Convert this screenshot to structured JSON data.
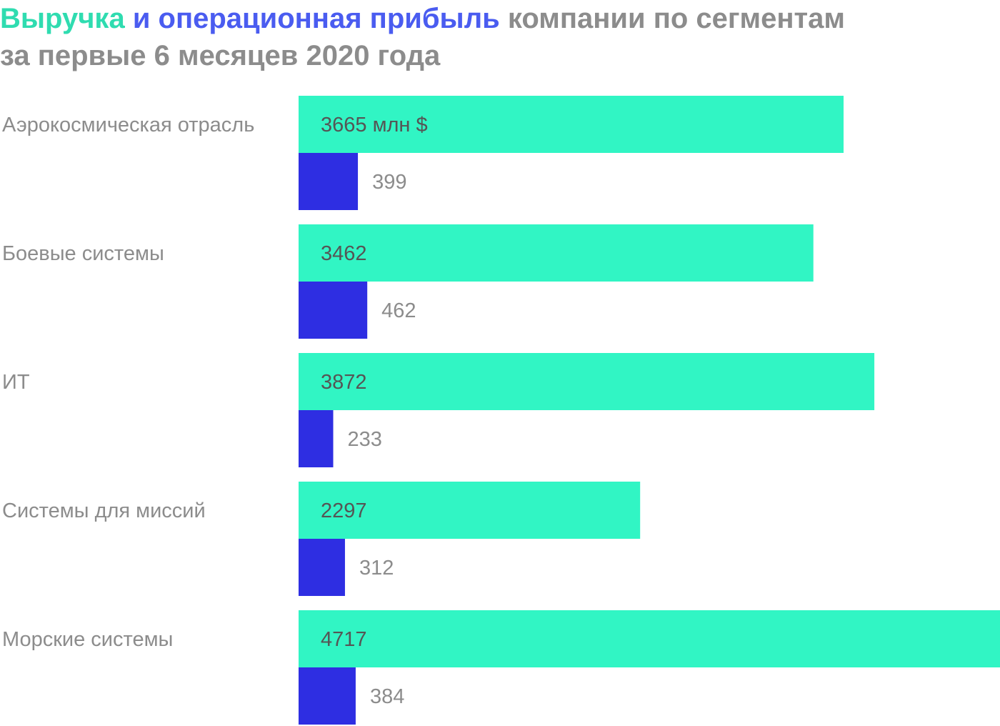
{
  "chart_data": {
    "type": "bar",
    "orientation": "horizontal",
    "title": {
      "revenue_word": "Выручка",
      "and_op_word": "и операционная прибыль",
      "rest_line1": "компании по сегментам",
      "line2": "за первые 6 месяцев 2020 года"
    },
    "categories": [
      "Аэрокосмическая отрасль",
      "Боевые системы",
      "ИТ",
      "Системы для миссий",
      "Морские системы"
    ],
    "unit_suffix": " млн $",
    "series": [
      {
        "key": "revenue",
        "values": [
          3665,
          3462,
          3872,
          2297,
          4717
        ],
        "color": "#31f5c4",
        "label_color": "#555555"
      },
      {
        "key": "operating_profit",
        "values": [
          399,
          462,
          233,
          312,
          384
        ],
        "color": "#2e2ee2",
        "label_color": "#8c8c8c"
      }
    ],
    "xlim": [
      0,
      4717
    ],
    "grid": false,
    "legend": "none"
  },
  "colors": {
    "title_gray": "#8c8c8c",
    "title_revenue": "#2fdcb0",
    "title_operating": "#4a5cf0"
  }
}
